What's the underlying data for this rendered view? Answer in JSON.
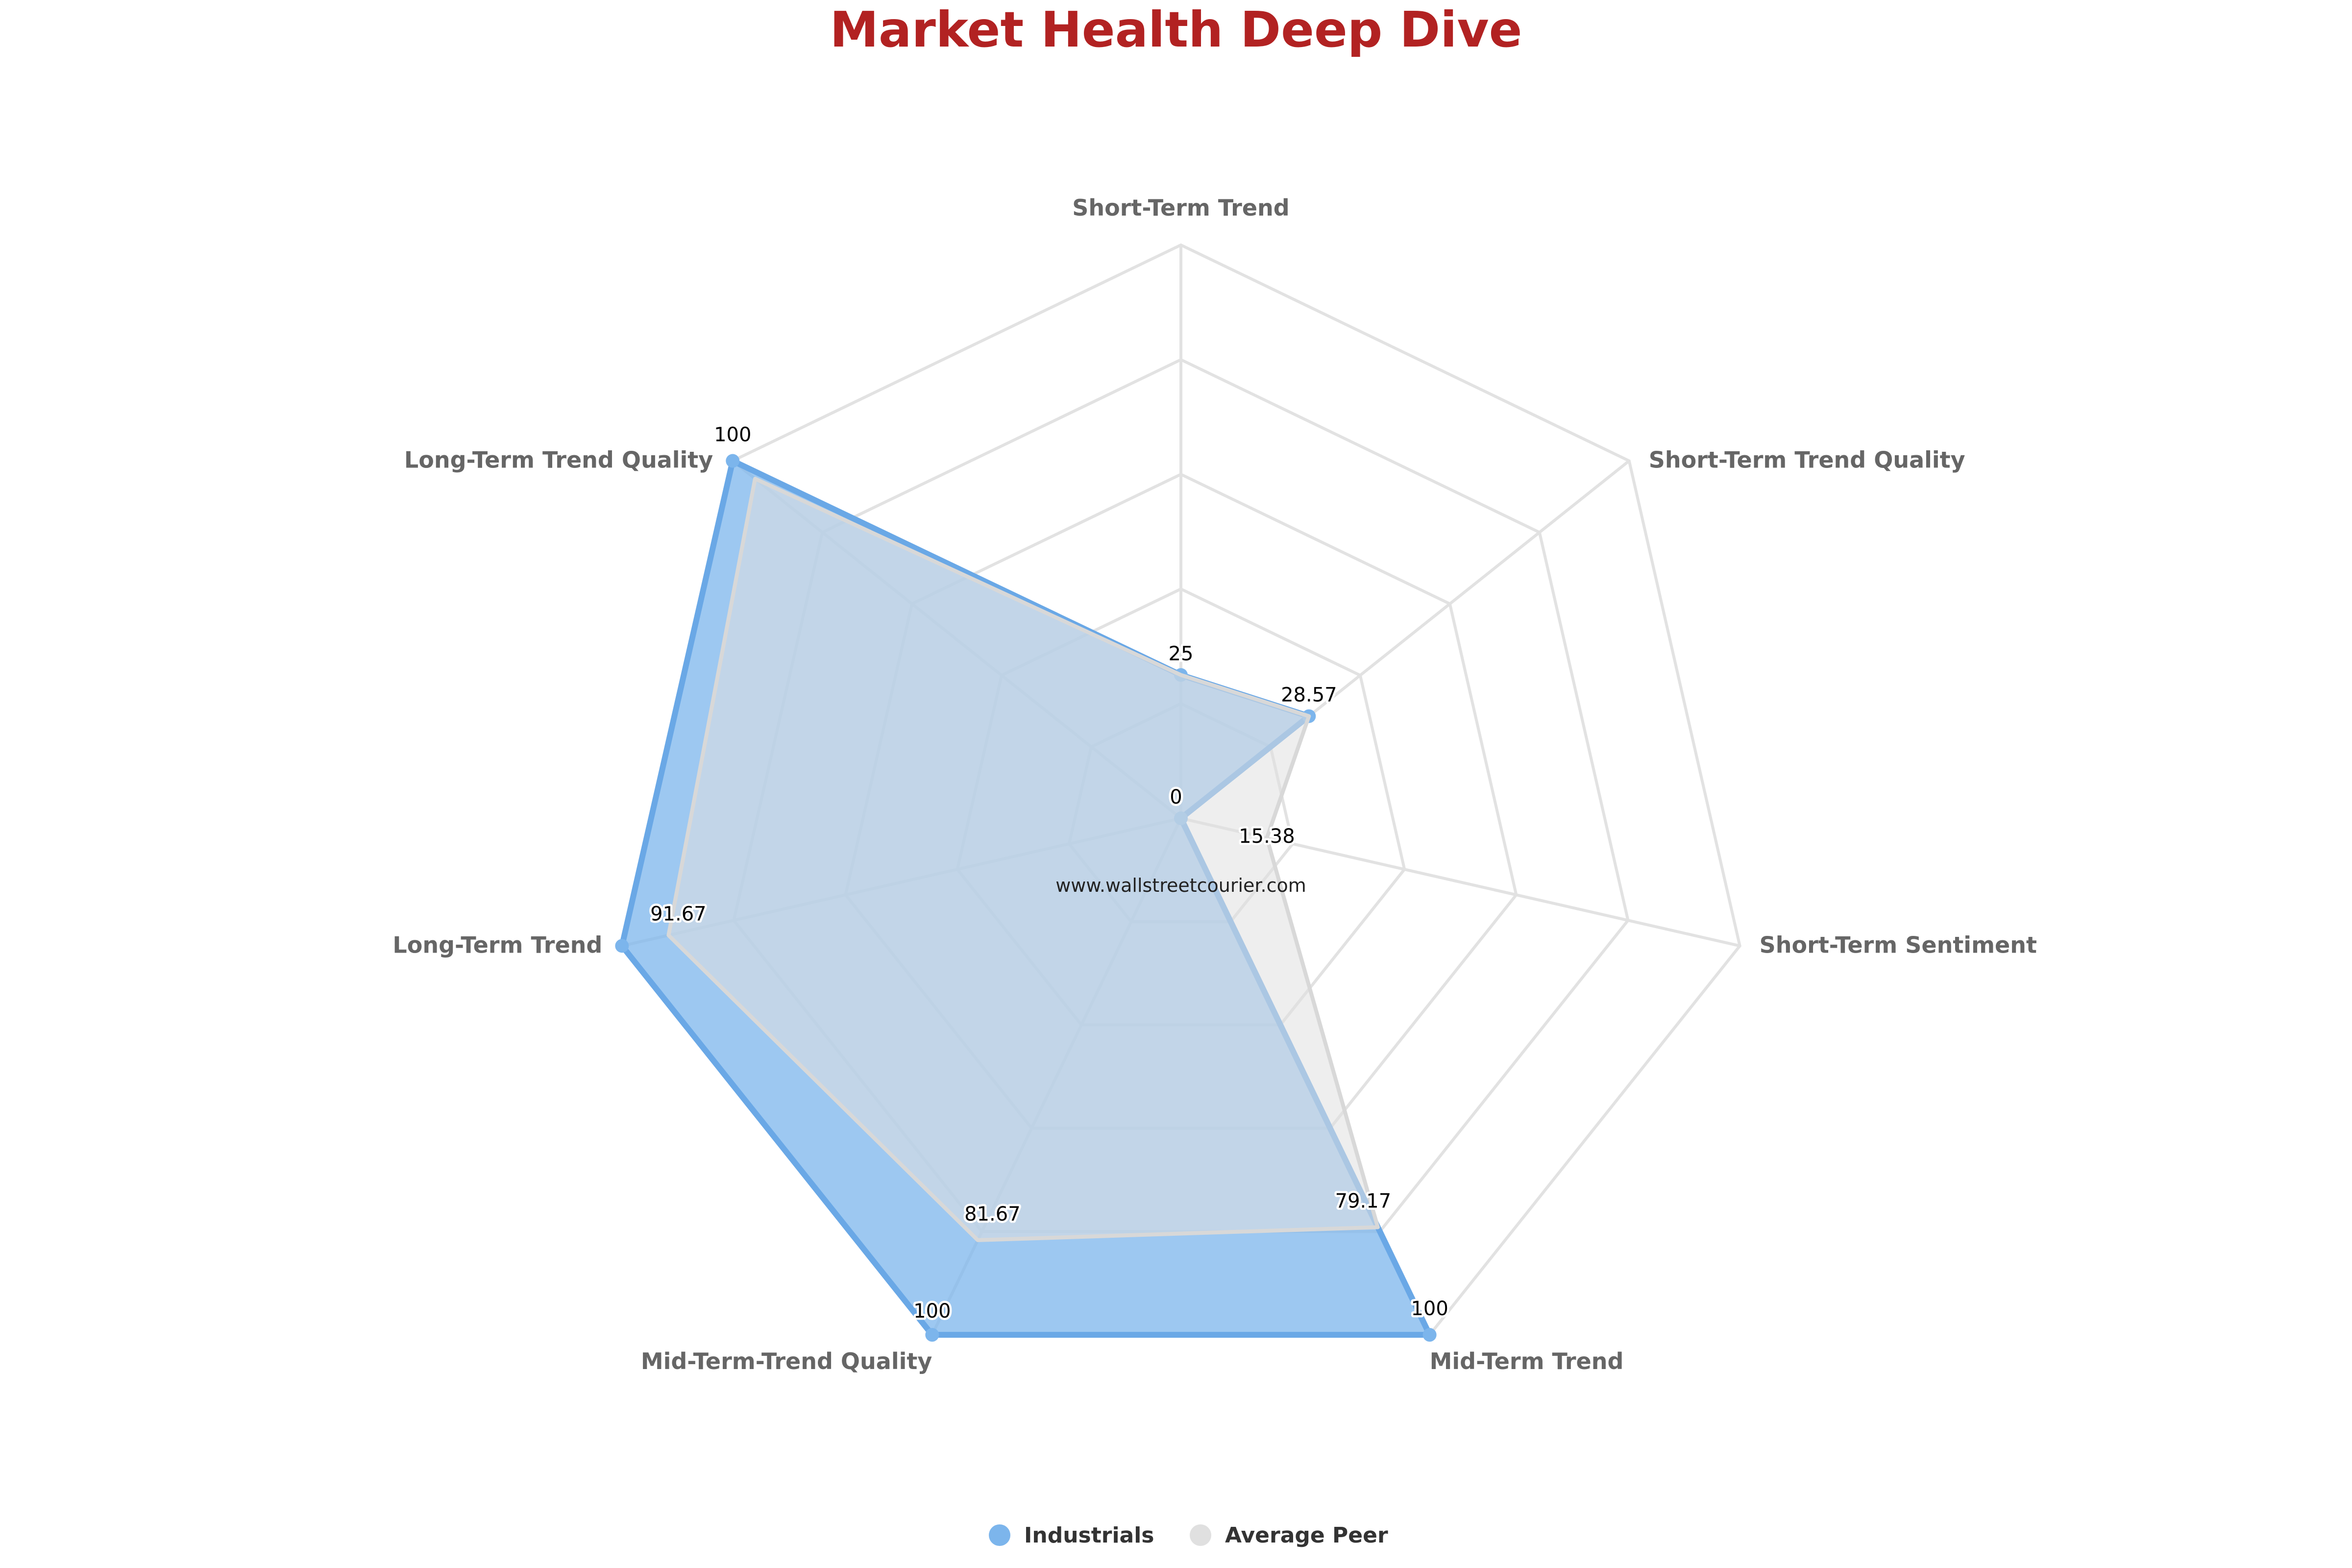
{
  "chart_data": {
    "type": "radar",
    "title": "Market Health Deep Dive",
    "watermark": "www.wallstreetcourier.com",
    "categories": [
      "Short-Term Trend",
      "Short-Term Trend Quality",
      "Short-Term Sentiment",
      "Mid-Term Trend",
      "Mid-Term-Trend Quality",
      "Long-Term Trend",
      "Long-Term Trend Quality"
    ],
    "range": [
      0,
      100
    ],
    "grid_steps": [
      20,
      40,
      60,
      80,
      100
    ],
    "series": [
      {
        "name": "Industrials",
        "values": [
          25,
          28.57,
          0,
          100,
          100,
          100,
          100
        ],
        "color": "#7cb5ec"
      },
      {
        "name": "Average Peer",
        "values": [
          25,
          28.57,
          15.38,
          79.17,
          81.67,
          91.67,
          95
        ],
        "color": "#e0e0e0"
      }
    ],
    "data_labels": [
      "25",
      "28.57",
      "0",
      "15.38",
      "79.17",
      "100",
      "81.67",
      "100",
      "91.67",
      "100"
    ],
    "legend_position": "bottom-center"
  },
  "colors": {
    "title": "#b22222",
    "grid": "#e2e2e2",
    "axis_label": "#666666"
  }
}
